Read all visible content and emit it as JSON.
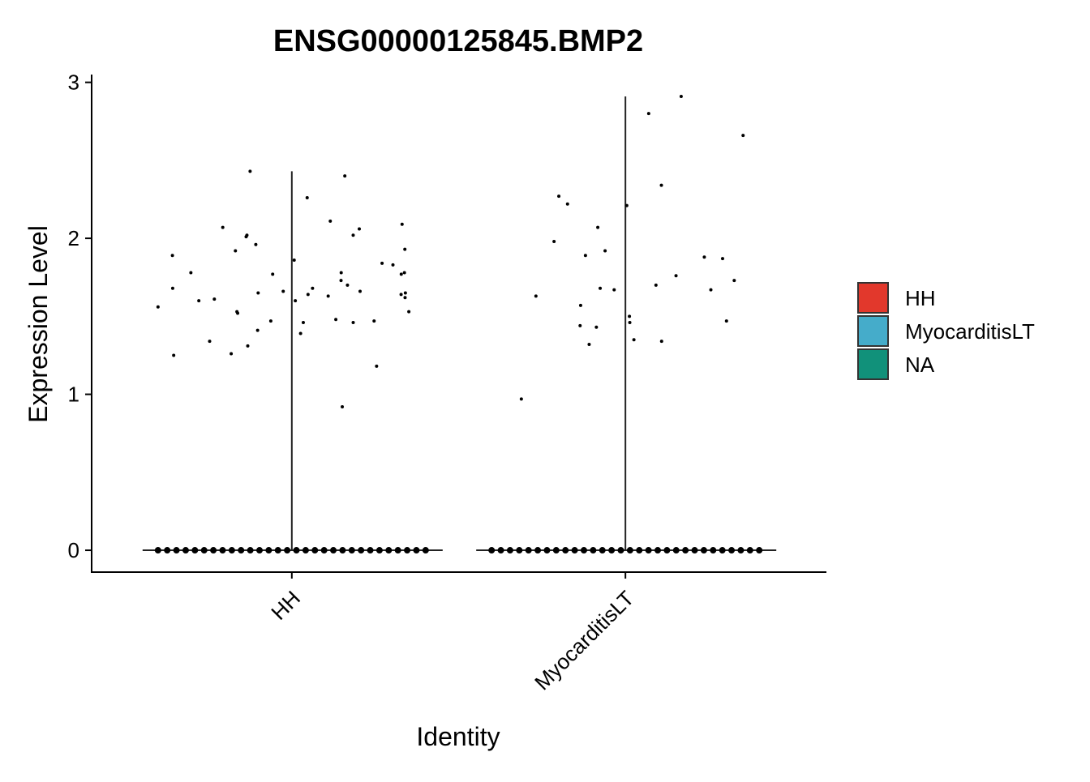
{
  "chart_data": {
    "type": "violin",
    "title": "ENSG00000125845.BMP2",
    "xlabel": "Identity",
    "ylabel": "Expression Level",
    "categories": [
      "HH",
      "MyocarditisLT"
    ],
    "series": [
      {
        "name": "HH",
        "color": "#e2382c",
        "values": [
          1.56,
          1.78,
          1.92,
          1.61,
          1.46,
          1.39,
          2.01,
          2.06,
          1.66,
          1.46,
          1.78,
          1.63,
          1.18,
          2.07,
          1.65,
          1.7,
          2.4,
          1.89,
          1.73,
          1.66,
          1.93,
          1.47,
          1.78,
          1.6,
          1.62,
          0.92,
          2.11,
          1.68,
          2.09,
          1.64,
          1.41,
          1.31,
          1.84,
          2.02,
          1.6,
          1.52,
          1.77,
          1.53,
          1.53,
          2.26,
          2.02,
          1.83,
          1.25,
          1.26,
          1.64,
          1.86,
          1.47,
          1.34,
          1.77,
          1.68,
          1.96,
          2.43,
          1.48,
          1.65,
          0,
          0,
          0,
          0,
          0,
          0,
          0,
          0,
          0,
          0,
          0,
          0,
          0,
          0,
          0,
          0,
          0,
          0,
          0,
          0,
          0,
          0,
          0,
          0,
          0,
          0,
          0,
          0,
          0,
          0
        ]
      },
      {
        "name": "MyocarditisLT",
        "color": "#45acca",
        "values": [
          1.5,
          1.63,
          1.68,
          2.22,
          1.32,
          1.92,
          1.57,
          1.35,
          1.7,
          1.98,
          1.73,
          1.67,
          1.87,
          1.34,
          2.34,
          1.46,
          2.21,
          1.76,
          2.66,
          2.07,
          2.91,
          2.27,
          2.8,
          1.89,
          1.44,
          1.43,
          1.88,
          1.47,
          0.97,
          1.67,
          0,
          0,
          0,
          0,
          0,
          0,
          0,
          0,
          0,
          0,
          0,
          0,
          0,
          0,
          0,
          0,
          0,
          0,
          0,
          0,
          0,
          0,
          0,
          0,
          0,
          0,
          0,
          0,
          0,
          0
        ]
      },
      {
        "name": "NA",
        "color": "#11917a"
      }
    ],
    "ylim": [
      -0.14,
      3.05
    ],
    "yticks": [
      0,
      1,
      2,
      3
    ],
    "legend": "right"
  }
}
